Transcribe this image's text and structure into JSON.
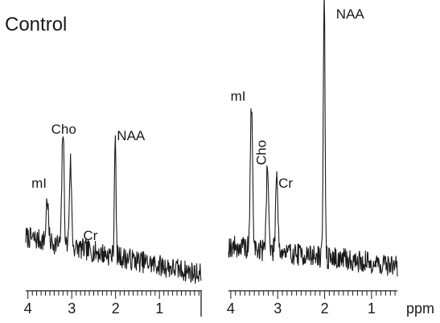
{
  "title": "Control",
  "xlabel": "ppm",
  "chart_data": [
    {
      "type": "line",
      "title": "Control",
      "xlabel": "",
      "x_reversed": true,
      "xlim": [
        4.05,
        0.05
      ],
      "ylim": [
        0,
        100
      ],
      "xticks": [
        4,
        3,
        2,
        1
      ],
      "grid": false,
      "peaks": [
        {
          "label": "mI",
          "ppm": 3.56,
          "height": 28
        },
        {
          "label": "Cho",
          "ppm": 3.2,
          "height": 75
        },
        {
          "label": "Cr",
          "ppm": 3.03,
          "height": 55
        },
        {
          "label": "NAA",
          "ppm": 2.01,
          "height": 80
        }
      ],
      "peak_labels": [
        {
          "text": "mI",
          "ppm": 3.7,
          "rotated": false
        },
        {
          "text": "Cho",
          "ppm": 3.25,
          "rotated": false
        },
        {
          "text": "Cr",
          "ppm": 2.52,
          "rotated": false
        },
        {
          "text": "NAA",
          "ppm": 1.75,
          "rotated": false
        }
      ],
      "baseline": {
        "start_level": 30,
        "end_level": 6
      }
    },
    {
      "type": "line",
      "title": "",
      "xlabel": "ppm",
      "x_reversed": true,
      "xlim": [
        4.05,
        0.45
      ],
      "ylim": [
        0,
        100
      ],
      "xticks": [
        4,
        3,
        2,
        1
      ],
      "grid": false,
      "peaks": [
        {
          "label": "mI",
          "ppm": 3.56,
          "height": 50
        },
        {
          "label": "Cho",
          "ppm": 3.22,
          "height": 30
        },
        {
          "label": "Cr",
          "ppm": 3.02,
          "height": 28
        },
        {
          "label": "NAA",
          "ppm": 2.01,
          "height": 95
        }
      ],
      "peak_labels": [
        {
          "text": "mI",
          "ppm": 3.8,
          "rotated": false
        },
        {
          "text": "Cho",
          "ppm": 3.25,
          "rotated": true
        },
        {
          "text": "Cr",
          "ppm": 2.78,
          "rotated": false
        },
        {
          "text": "NAA",
          "ppm": 1.55,
          "rotated": false
        }
      ],
      "baseline": {
        "start_level": 15,
        "end_level": 8
      }
    }
  ]
}
